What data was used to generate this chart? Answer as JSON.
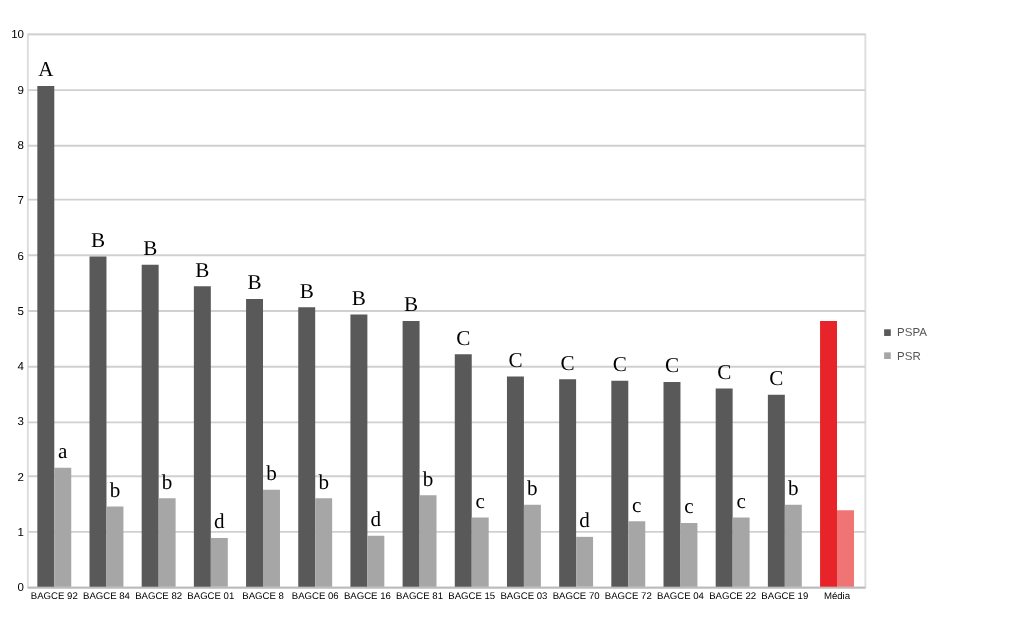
{
  "chart_data": {
    "type": "bar",
    "categories": [
      "BAGCE 92",
      "BAGCE 84",
      "BAGCE 82",
      "BAGCE 01",
      "BAGCE 8",
      "BAGCE 06",
      "BAGCE 16",
      "BAGCE 81",
      "BAGCE 15",
      "BAGCE 03",
      "BAGCE 70",
      "BAGCE 72",
      "BAGCE 04",
      "BAGCE 22",
      "BAGCE 19",
      "Média"
    ],
    "series": [
      {
        "name": "PSPA",
        "color": "#595959",
        "colors": [
          "#595959",
          "#595959",
          "#595959",
          "#595959",
          "#595959",
          "#595959",
          "#595959",
          "#595959",
          "#595959",
          "#595959",
          "#595959",
          "#595959",
          "#595959",
          "#595959",
          "#595959",
          "#e8242b"
        ],
        "values": [
          9.05,
          5.97,
          5.82,
          5.43,
          5.2,
          5.05,
          4.92,
          4.8,
          4.2,
          3.8,
          3.75,
          3.72,
          3.7,
          3.58,
          3.47,
          4.8
        ]
      },
      {
        "name": "PSR",
        "color": "#a6a6a6",
        "colors": [
          "#a6a6a6",
          "#a6a6a6",
          "#a6a6a6",
          "#a6a6a6",
          "#a6a6a6",
          "#a6a6a6",
          "#a6a6a6",
          "#a6a6a6",
          "#a6a6a6",
          "#a6a6a6",
          "#a6a6a6",
          "#a6a6a6",
          "#a6a6a6",
          "#a6a6a6",
          "#a6a6a6",
          "#f07474"
        ],
        "values": [
          2.15,
          1.45,
          1.6,
          0.88,
          1.75,
          1.6,
          0.92,
          1.65,
          1.25,
          1.48,
          0.9,
          1.18,
          1.15,
          1.25,
          1.48,
          1.38
        ]
      }
    ],
    "annotations": [
      {
        "text": "A",
        "x": "BAGCE 92",
        "y": 9.05
      },
      {
        "text": "B",
        "x": "BAGCE 84",
        "y": 5.97
      },
      {
        "text": "B",
        "x": "BAGCE 82",
        "y": 5.82
      },
      {
        "text": "B",
        "x": "BAGCE 01",
        "y": 5.43
      },
      {
        "text": "B",
        "x": "BAGCE 8",
        "y": 5.2
      },
      {
        "text": "B",
        "x": "BAGCE 06",
        "y": 5.05
      },
      {
        "text": "B",
        "x": "BAGCE 16",
        "y": 4.92
      },
      {
        "text": "B",
        "x": "BAGCE 81",
        "y": 4.8
      },
      {
        "text": "C",
        "x": "BAGCE 15",
        "y": 4.2
      },
      {
        "text": "C",
        "x": "BAGCE 03",
        "y": 3.8
      },
      {
        "text": "C",
        "x": "BAGCE 70",
        "y": 3.75
      },
      {
        "text": "C",
        "x": "BAGCE 72",
        "y": 3.72
      },
      {
        "text": "C",
        "x": "BAGCE 04",
        "y": 3.7
      },
      {
        "text": "C",
        "x": "BAGCE 22",
        "y": 3.58
      },
      {
        "text": "C",
        "x": "BAGCE 19",
        "y": 3.47
      },
      {
        "text": "a",
        "x": "BAGCE 92",
        "y": 2.15
      },
      {
        "text": "b",
        "x": "BAGCE 84",
        "y": 1.45
      },
      {
        "text": "b",
        "x": "BAGCE 82",
        "y": 1.6
      },
      {
        "text": "d",
        "x": "BAGCE 01",
        "y": 0.88
      },
      {
        "text": "b",
        "x": "BAGCE 8",
        "y": 1.75
      },
      {
        "text": "b",
        "x": "BAGCE 06",
        "y": 1.6
      },
      {
        "text": "d",
        "x": "BAGCE 16",
        "y": 0.92
      },
      {
        "text": "b",
        "x": "BAGCE 81",
        "y": 1.65
      },
      {
        "text": "c",
        "x": "BAGCE 15",
        "y": 1.25
      },
      {
        "text": "b",
        "x": "BAGCE 03",
        "y": 1.48
      },
      {
        "text": "d",
        "x": "BAGCE 70",
        "y": 0.9
      },
      {
        "text": "c",
        "x": "BAGCE 72",
        "y": 1.18
      },
      {
        "text": "c",
        "x": "BAGCE 04",
        "y": 1.15
      },
      {
        "text": "c",
        "x": "BAGCE 22",
        "y": 1.25
      },
      {
        "text": "b",
        "x": "BAGCE 19",
        "y": 1.48
      }
    ],
    "ylim": [
      0,
      10
    ],
    "yticks": [
      0,
      1,
      2,
      3,
      4,
      5,
      6,
      7,
      8,
      9,
      10
    ],
    "grid": "y",
    "legend": "right"
  }
}
